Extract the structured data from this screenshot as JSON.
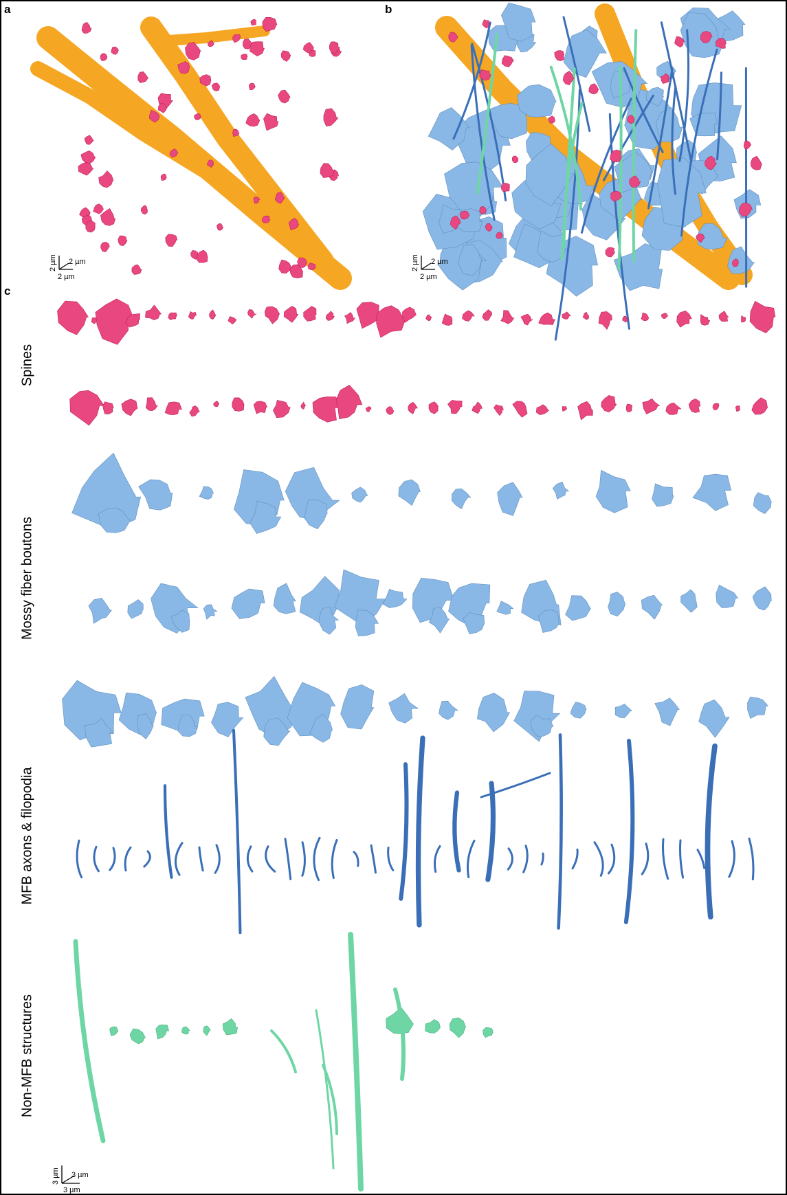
{
  "panels": {
    "a": {
      "letter": "a"
    },
    "b": {
      "letter": "b"
    },
    "c": {
      "letter": "c"
    }
  },
  "row_labels": {
    "spines": "Spines",
    "mossy_fiber_boutons": "Mossy fiber boutons",
    "mfb_axons": "MFB axons & filopodia",
    "non_mfb": "Non-MFB structures"
  },
  "scale_bars": {
    "panel_a": {
      "x": "2 µm",
      "y": "2 µm",
      "z": "2 µm"
    },
    "panel_b": {
      "x": "2 µm",
      "y": "2 µm",
      "z": "2 µm"
    },
    "panel_c": {
      "x": "3 µm",
      "y": "3 µm",
      "z": "3 µm"
    }
  },
  "colors": {
    "dendrite": "#f5a623",
    "spine": "#e8487f",
    "mossy_fiber_bouton": "#8ab8e6",
    "mfb_axon": "#3a6fb8",
    "non_mfb": "#6ed6a4",
    "border": "#000000"
  }
}
